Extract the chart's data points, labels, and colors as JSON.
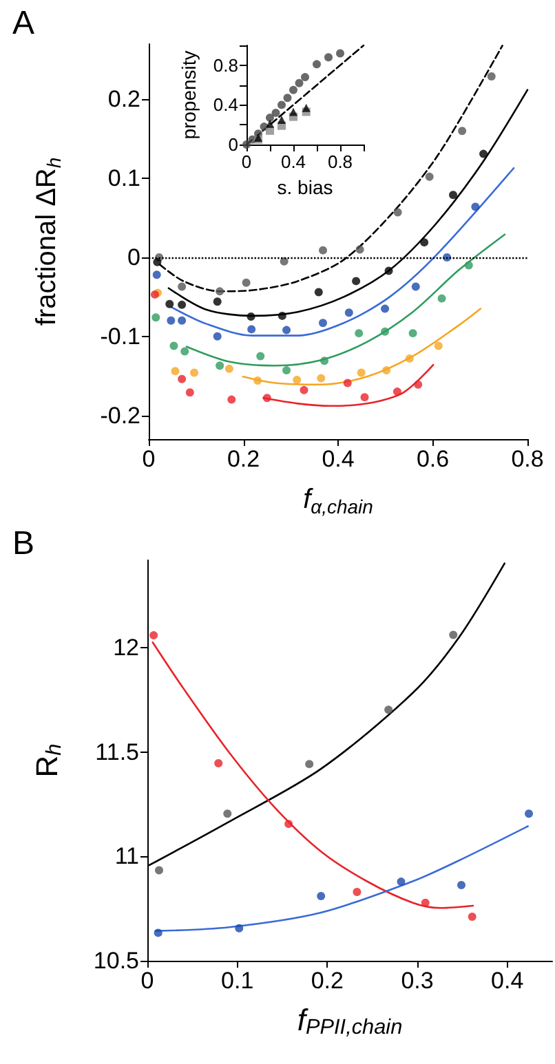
{
  "chart_data": [
    {
      "type": "scatter",
      "title": "A",
      "xlabel": "f$_{α,chain}$",
      "ylabel": "fractional ΔR$_{h}$",
      "xlim": [
        0,
        0.8
      ],
      "ylim": [
        -0.23,
        0.27
      ],
      "xticks": [
        0,
        0.2,
        0.4,
        0.6,
        0.8
      ],
      "yticks": [
        -0.2,
        -0.1,
        0,
        0.1,
        0.2
      ],
      "marker": "circle",
      "ref_lines": [
        {
          "axis": "y",
          "value": 0,
          "color": "#000000",
          "line_style": "dotted"
        }
      ],
      "series": [
        {
          "type": "line",
          "marker": "none",
          "line_style": "dashed",
          "color": "#000000",
          "x": [
            0.023,
            0.073,
            0.15,
            0.228,
            0.315,
            0.412,
            0.519,
            0.616,
            0.747
          ],
          "values": [
            -0.009,
            -0.03,
            -0.043,
            -0.041,
            -0.03,
            -0.003,
            0.059,
            0.134,
            0.268
          ]
        },
        {
          "type": "line",
          "marker": "none",
          "line_style": "solid",
          "color": "#000000",
          "x": [
            0.042,
            0.121,
            0.218,
            0.315,
            0.412,
            0.509,
            0.606,
            0.705,
            0.8
          ],
          "values": [
            -0.039,
            -0.066,
            -0.074,
            -0.069,
            -0.05,
            -0.016,
            0.042,
            0.12,
            0.212
          ]
        },
        {
          "type": "line",
          "marker": "none",
          "line_style": "solid",
          "color": "#3a6bd6",
          "x": [
            0.048,
            0.121,
            0.218,
            0.315,
            0.412,
            0.509,
            0.606,
            0.771
          ],
          "values": [
            -0.063,
            -0.084,
            -0.099,
            -0.099,
            -0.083,
            -0.05,
            0.002,
            0.113
          ]
        },
        {
          "type": "line",
          "marker": "none",
          "line_style": "solid",
          "color": "#2e9c5e",
          "x": [
            0.08,
            0.17,
            0.267,
            0.364,
            0.461,
            0.558,
            0.655,
            0.752
          ],
          "values": [
            -0.113,
            -0.132,
            -0.137,
            -0.13,
            -0.107,
            -0.069,
            -0.016,
            0.029
          ]
        },
        {
          "type": "line",
          "marker": "none",
          "line_style": "solid",
          "color": "#f5a623",
          "x": [
            0.199,
            0.267,
            0.364,
            0.461,
            0.558,
            0.655,
            0.701
          ],
          "values": [
            -0.151,
            -0.159,
            -0.161,
            -0.151,
            -0.125,
            -0.086,
            -0.065
          ]
        },
        {
          "type": "line",
          "marker": "none",
          "line_style": "solid",
          "color": "#e8232a",
          "x": [
            0.242,
            0.315,
            0.383,
            0.461,
            0.538,
            0.601
          ],
          "values": [
            -0.178,
            -0.185,
            -0.188,
            -0.185,
            -0.171,
            -0.136
          ]
        },
        {
          "color": "#555555",
          "x": [
            0.022,
            0.07,
            0.15,
            0.206,
            0.286,
            0.368,
            0.446,
            0.526,
            0.593,
            0.662,
            0.724
          ],
          "values": [
            0.0,
            -0.037,
            -0.043,
            -0.032,
            -0.005,
            0.009,
            0.01,
            0.057,
            0.102,
            0.16,
            0.229
          ]
        },
        {
          "color": "#000000",
          "x": [
            0.018,
            0.044,
            0.07,
            0.145,
            0.216,
            0.282,
            0.359,
            0.438,
            0.507,
            0.582,
            0.643,
            0.707
          ],
          "values": [
            -0.006,
            -0.059,
            -0.06,
            -0.056,
            -0.075,
            -0.074,
            -0.044,
            -0.03,
            -0.017,
            0.019,
            0.079,
            0.131
          ]
        },
        {
          "color": "#1a4aad",
          "x": [
            0.017,
            0.047,
            0.07,
            0.145,
            0.217,
            0.291,
            0.368,
            0.423,
            0.499,
            0.564,
            0.63,
            0.69
          ],
          "values": [
            -0.022,
            -0.08,
            -0.08,
            -0.1,
            -0.091,
            -0.092,
            -0.083,
            -0.07,
            -0.065,
            -0.037,
            0.0,
            0.064
          ]
        },
        {
          "color": "#2e9c5e",
          "x": [
            0.015,
            0.053,
            0.076,
            0.15,
            0.236,
            0.291,
            0.371,
            0.444,
            0.499,
            0.558,
            0.619,
            0.676
          ],
          "values": [
            -0.076,
            -0.112,
            -0.119,
            -0.137,
            -0.125,
            -0.143,
            -0.131,
            -0.096,
            -0.094,
            -0.096,
            -0.052,
            -0.01
          ]
        },
        {
          "color": "#f5a623",
          "x": [
            0.019,
            0.056,
            0.096,
            0.17,
            0.23,
            0.313,
            0.364,
            0.449,
            0.502,
            0.551,
            0.612
          ],
          "values": [
            -0.045,
            -0.144,
            -0.146,
            -0.141,
            -0.156,
            -0.155,
            -0.153,
            -0.146,
            -0.143,
            -0.128,
            -0.112
          ]
        },
        {
          "color": "#e8232a",
          "x": [
            0.013,
            0.07,
            0.087,
            0.175,
            0.25,
            0.328,
            0.42,
            0.456,
            0.525,
            0.569
          ],
          "values": [
            -0.047,
            -0.154,
            -0.171,
            -0.18,
            -0.178,
            -0.168,
            -0.159,
            -0.177,
            -0.17,
            -0.161
          ]
        }
      ]
    },
    {
      "type": "scatter",
      "xlabel": "s. bias",
      "ylabel": "propensity",
      "xlim": [
        0,
        1
      ],
      "ylim": [
        0,
        1
      ],
      "xticks": [
        0,
        {
          "value": 0.2,
          "label": null
        },
        0.4,
        {
          "value": 0.6,
          "label": null
        },
        0.8,
        {
          "value": 1,
          "label": null
        }
      ],
      "yticks": [
        0,
        {
          "value": 0.2,
          "label": null
        },
        0.4,
        {
          "value": 0.6,
          "label": null
        },
        0.8,
        {
          "value": 1,
          "label": null
        }
      ],
      "series": [
        {
          "type": "line",
          "marker": "none",
          "line_style": "dashed",
          "color": "#000000",
          "x": [
            0,
            1
          ],
          "values": [
            0,
            1
          ]
        },
        {
          "marker": "circle",
          "color": "#444444",
          "x": [
            0,
            0.05,
            0.1,
            0.15,
            0.2,
            0.25,
            0.3,
            0.35,
            0.4,
            0.45,
            0.5,
            0.6,
            0.7,
            0.8
          ],
          "values": [
            0,
            0.05,
            0.11,
            0.18,
            0.27,
            0.32,
            0.4,
            0.47,
            0.55,
            0.62,
            0.68,
            0.81,
            0.88,
            0.92
          ]
        },
        {
          "marker": "square",
          "color": "#888888",
          "x": [
            0.1,
            0.2,
            0.3,
            0.4,
            0.51
          ],
          "values": [
            0.05,
            0.14,
            0.19,
            0.28,
            0.33
          ]
        },
        {
          "marker": "triangle",
          "color": "#000000",
          "x": [
            0.1,
            0.2,
            0.3,
            0.4,
            0.51
          ],
          "values": [
            0.07,
            0.21,
            0.25,
            0.33,
            0.37
          ]
        }
      ]
    },
    {
      "type": "scatter",
      "title": "B",
      "xlabel": "f$_{PPII,chain}$",
      "ylabel": "R$_{h}$",
      "xlim": [
        0,
        0.45
      ],
      "ylim": [
        10.5,
        12.42
      ],
      "xticks": [
        0,
        0.1,
        0.2,
        0.3,
        0.4
      ],
      "yticks": [
        10.5,
        11,
        11.5,
        12
      ],
      "marker": "circle",
      "series": [
        {
          "type": "line",
          "marker": "none",
          "line_style": "solid",
          "color": "#000000",
          "x": [
            0.002,
            0.091,
            0.193,
            0.295,
            0.346,
            0.397
          ],
          "values": [
            10.958,
            11.167,
            11.42,
            11.784,
            12.048,
            12.405
          ]
        },
        {
          "type": "line",
          "marker": "none",
          "line_style": "solid",
          "color": "#e8232a",
          "x": [
            0.006,
            0.04,
            0.091,
            0.142,
            0.193,
            0.244,
            0.295,
            0.326,
            0.362
          ],
          "values": [
            12.026,
            11.806,
            11.498,
            11.233,
            11.024,
            10.881,
            10.778,
            10.753,
            10.764
          ]
        },
        {
          "type": "line",
          "marker": "none",
          "line_style": "solid",
          "color": "#3a6bd6",
          "x": [
            0.009,
            0.091,
            0.193,
            0.295,
            0.346,
            0.423
          ],
          "values": [
            10.643,
            10.661,
            10.731,
            10.881,
            10.98,
            11.145
          ]
        },
        {
          "color": "#555555",
          "x": [
            0.013,
            0.089,
            0.18,
            0.268,
            0.34
          ],
          "values": [
            10.934,
            11.205,
            11.443,
            11.703,
            12.062
          ]
        },
        {
          "color": "#e8232a",
          "x": [
            0.007,
            0.079,
            0.157,
            0.233,
            0.309,
            0.361
          ],
          "values": [
            12.06,
            11.447,
            11.156,
            10.83,
            10.778,
            10.711
          ]
        },
        {
          "color": "#1a4aad",
          "x": [
            0.012,
            0.102,
            0.193,
            0.282,
            0.349,
            0.424
          ],
          "values": [
            10.634,
            10.656,
            10.81,
            10.879,
            10.863,
            11.205
          ]
        }
      ]
    }
  ]
}
